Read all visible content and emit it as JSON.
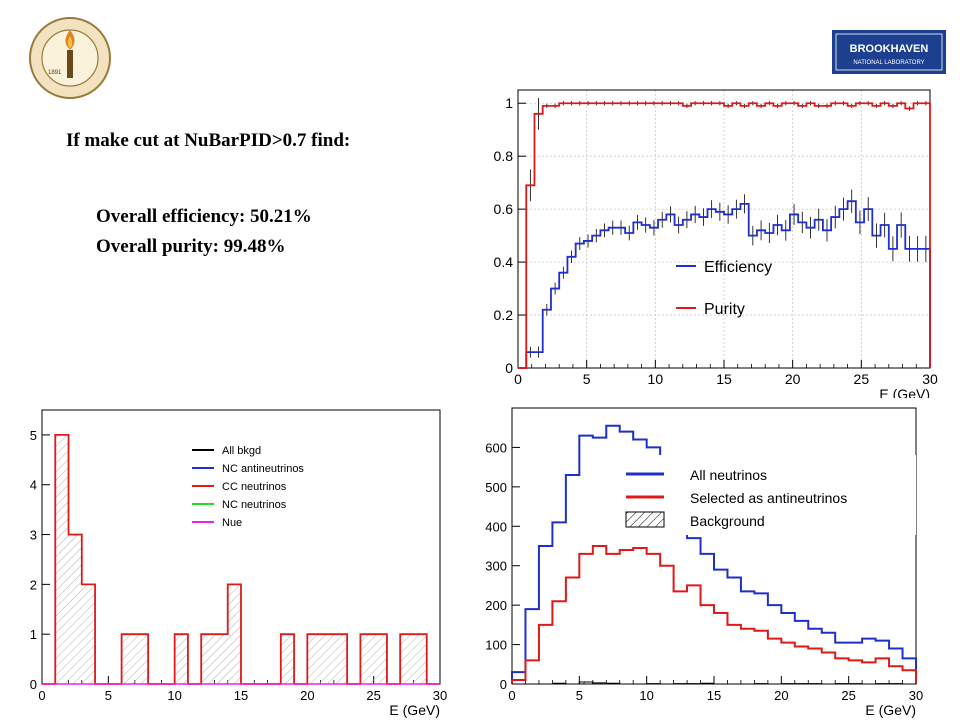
{
  "header": {
    "cut_title": "If make cut at NuBarPID>0.7 find:",
    "efficiency_line": "Overall efficiency: 50.21%",
    "purity_line": "Overall purity: 99.48%"
  },
  "logos": {
    "left": {
      "name": "caltech-seal",
      "text": "CALIFORNIA INSTITUTE OF TECHNOLOGY",
      "year": "1891"
    },
    "right": {
      "name": "brookhaven-logo",
      "line1": "BROOKHAVEN",
      "line2": "NATIONAL LABORATORY"
    }
  },
  "colors": {
    "blue": "#1f2fcc",
    "red": "#e01818",
    "green": "#22dd22",
    "magenta": "#ee22ee",
    "black": "#000000"
  },
  "chart_data": [
    {
      "type": "line",
      "step": true,
      "title": "",
      "xlabel": "E (GeV)",
      "ylabel": "",
      "xlim": [
        0,
        30
      ],
      "ylim": [
        0,
        1.05
      ],
      "x_bin_width": 0.6,
      "xticks": [
        0,
        5,
        10,
        15,
        20,
        25,
        30
      ],
      "yticks": [
        0,
        0.2,
        0.4,
        0.6,
        0.8,
        1
      ],
      "legend_position": "center-right",
      "series": [
        {
          "name": "Efficiency",
          "color": "blue",
          "values": [
            0,
            0.06,
            0.06,
            0.22,
            0.3,
            0.36,
            0.42,
            0.47,
            0.48,
            0.5,
            0.52,
            0.53,
            0.53,
            0.51,
            0.55,
            0.54,
            0.53,
            0.56,
            0.58,
            0.54,
            0.56,
            0.58,
            0.57,
            0.6,
            0.59,
            0.58,
            0.6,
            0.62,
            0.5,
            0.52,
            0.51,
            0.54,
            0.52,
            0.58,
            0.55,
            0.53,
            0.56,
            0.52,
            0.57,
            0.6,
            0.63,
            0.55,
            0.6,
            0.5,
            0.54,
            0.45,
            0.54,
            0.45,
            0.45,
            0.45
          ]
        },
        {
          "name": "Purity",
          "color": "red",
          "values": [
            0,
            0.69,
            0.96,
            0.99,
            0.99,
            1,
            1,
            1,
            1,
            1,
            1,
            1,
            1,
            1,
            1,
            1,
            1,
            1,
            1,
            1,
            0.99,
            1,
            1,
            1,
            1,
            0.99,
            1,
            0.99,
            1,
            0.99,
            1,
            0.99,
            1,
            1,
            0.99,
            1,
            0.99,
            0.99,
            1,
            1,
            0.99,
            1,
            1,
            0.99,
            1,
            0.99,
            1,
            0.98,
            1,
            1
          ]
        }
      ]
    },
    {
      "type": "bar",
      "step": true,
      "title": "",
      "xlabel": "E (GeV)",
      "ylabel": "",
      "xlim": [
        0,
        30
      ],
      "ylim": [
        0,
        5.5
      ],
      "x_bin_width": 1,
      "xticks": [
        0,
        5,
        10,
        15,
        20,
        25,
        30
      ],
      "yticks": [
        0,
        1,
        2,
        3,
        4,
        5
      ],
      "legend_position": "top-right",
      "legend": [
        {
          "name": "All bkgd",
          "color": "black"
        },
        {
          "name": "NC antineutrinos",
          "color": "blue"
        },
        {
          "name": "CC neutrinos",
          "color": "red"
        },
        {
          "name": "NC neutrinos",
          "color": "green"
        },
        {
          "name": "Nue",
          "color": "magenta"
        }
      ],
      "series": [
        {
          "name": "CC neutrinos",
          "color": "red",
          "hatched": true,
          "values": [
            0,
            5,
            3,
            2,
            0,
            0,
            1,
            1,
            0,
            0,
            1,
            0,
            1,
            1,
            2,
            0,
            0,
            0,
            1,
            0,
            1,
            1,
            1,
            0,
            1,
            1,
            0,
            1,
            1,
            0
          ]
        },
        {
          "name": "Nue",
          "color": "magenta",
          "values": [
            0,
            0,
            0,
            0,
            0,
            0,
            0,
            0,
            0,
            0,
            0,
            0,
            0,
            0,
            0,
            0,
            0,
            0,
            0,
            0,
            0,
            0,
            0,
            0,
            0,
            0,
            0,
            0,
            0,
            0
          ]
        }
      ]
    },
    {
      "type": "line",
      "step": true,
      "title": "",
      "xlabel": "E (GeV)",
      "ylabel": "",
      "xlim": [
        0,
        30
      ],
      "ylim": [
        0,
        700
      ],
      "x_bin_width": 1,
      "xticks": [
        0,
        5,
        10,
        15,
        20,
        25,
        30
      ],
      "yticks": [
        0,
        100,
        200,
        300,
        400,
        500,
        600
      ],
      "legend_position": "top-right",
      "series": [
        {
          "name": "All neutrinos",
          "color": "blue",
          "values": [
            30,
            190,
            350,
            410,
            530,
            630,
            625,
            655,
            640,
            620,
            600,
            530,
            390,
            370,
            330,
            290,
            270,
            235,
            230,
            200,
            180,
            160,
            140,
            130,
            105,
            105,
            115,
            110,
            90,
            65
          ]
        },
        {
          "name": "Selected as antineutrinos",
          "color": "red",
          "values": [
            10,
            60,
            150,
            210,
            270,
            330,
            350,
            330,
            340,
            345,
            330,
            300,
            235,
            250,
            200,
            180,
            150,
            140,
            135,
            115,
            105,
            95,
            90,
            80,
            65,
            60,
            55,
            65,
            45,
            35
          ]
        },
        {
          "name": "Background",
          "color": "black",
          "hatched": true,
          "values": [
            0,
            0,
            0,
            2,
            0,
            5,
            3,
            2,
            0,
            0,
            1,
            0,
            1,
            1,
            2,
            0,
            0,
            0,
            1,
            0,
            1,
            1,
            1,
            0,
            1,
            1,
            0,
            1,
            1,
            0
          ]
        }
      ]
    }
  ]
}
